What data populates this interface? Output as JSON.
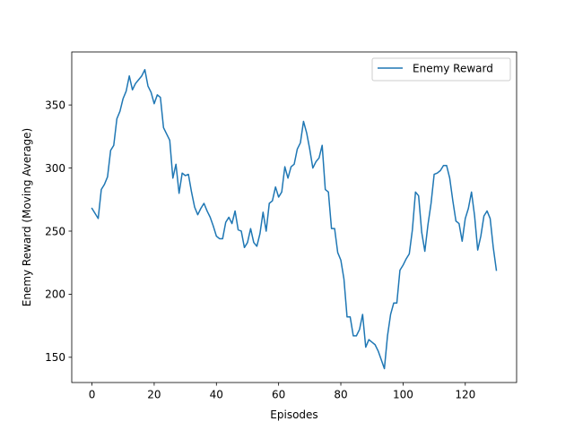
{
  "chart_data": {
    "type": "line",
    "title": "",
    "xlabel": "Episodes",
    "ylabel": "Enemy Reward (Moving Average)",
    "xlim": [
      -6.5,
      136.5
    ],
    "ylim": [
      130,
      392
    ],
    "xticks": [
      0,
      20,
      40,
      60,
      80,
      100,
      120
    ],
    "yticks": [
      150,
      200,
      250,
      300,
      350
    ],
    "grid": false,
    "legend_position": "top-right",
    "series": [
      {
        "name": "Enemy Reward",
        "color": "#1f77b4",
        "x": [
          0,
          1,
          2,
          3,
          4,
          5,
          6,
          7,
          8,
          9,
          10,
          11,
          12,
          13,
          14,
          15,
          16,
          17,
          18,
          19,
          20,
          21,
          22,
          23,
          24,
          25,
          26,
          27,
          28,
          29,
          30,
          31,
          32,
          33,
          34,
          35,
          36,
          37,
          38,
          39,
          40,
          41,
          42,
          43,
          44,
          45,
          46,
          47,
          48,
          49,
          50,
          51,
          52,
          53,
          54,
          55,
          56,
          57,
          58,
          59,
          60,
          61,
          62,
          63,
          64,
          65,
          66,
          67,
          68,
          69,
          70,
          71,
          72,
          73,
          74,
          75,
          76,
          77,
          78,
          79,
          80,
          81,
          82,
          83,
          84,
          85,
          86,
          87,
          88,
          89,
          90,
          91,
          92,
          93,
          94,
          95,
          96,
          97,
          98,
          99,
          100,
          101,
          102,
          103,
          104,
          105,
          106,
          107,
          108,
          109,
          110,
          111,
          112,
          113,
          114,
          115,
          116,
          117,
          118,
          119,
          120,
          121,
          122,
          123,
          124,
          125,
          126,
          127,
          128,
          129,
          130
        ],
        "values": [
          268,
          264,
          260,
          283,
          287,
          293,
          314,
          318,
          339,
          345,
          355,
          361,
          373,
          362,
          367,
          370,
          373,
          378,
          365,
          360,
          351,
          358,
          356,
          332,
          327,
          322,
          292,
          303,
          280,
          296,
          294,
          295,
          281,
          269,
          263,
          268,
          272,
          266,
          261,
          254,
          246,
          244,
          244,
          257,
          261,
          256,
          266,
          251,
          250,
          237,
          241,
          252,
          241,
          238,
          248,
          265,
          250,
          272,
          274,
          285,
          277,
          281,
          301,
          292,
          301,
          303,
          315,
          320,
          337,
          328,
          315,
          300,
          305,
          308,
          318,
          283,
          281,
          252,
          252,
          233,
          227,
          212,
          182,
          182,
          167,
          167,
          172,
          184,
          158,
          164,
          162,
          160,
          155,
          148,
          141,
          167,
          184,
          193,
          193,
          219,
          223,
          228,
          232,
          251,
          281,
          278,
          249,
          234,
          255,
          272,
          295,
          296,
          298,
          302,
          302,
          292,
          274,
          258,
          256,
          242,
          260,
          268,
          281,
          262,
          235,
          246,
          262,
          266,
          260,
          237,
          219
        ]
      }
    ]
  }
}
